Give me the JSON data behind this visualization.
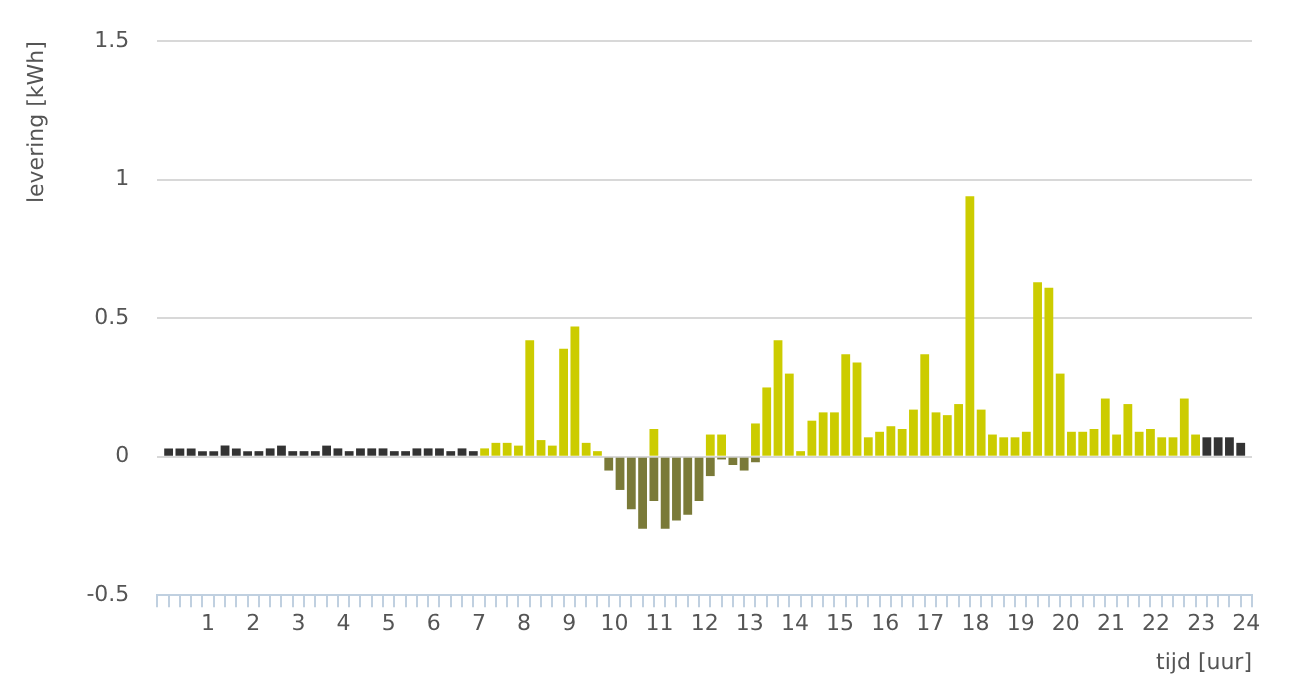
{
  "chart_data": {
    "type": "bar",
    "xlabel": "tijd [uur]",
    "ylabel": "levering [kWh]",
    "x": [
      0.125,
      0.375,
      0.625,
      0.875,
      1.125,
      1.375,
      1.625,
      1.875,
      2.125,
      2.375,
      2.625,
      2.875,
      3.125,
      3.375,
      3.625,
      3.875,
      4.125,
      4.375,
      4.625,
      4.875,
      5.125,
      5.375,
      5.625,
      5.875,
      6.125,
      6.375,
      6.625,
      6.875,
      7.125,
      7.375,
      7.625,
      7.875,
      8.125,
      8.375,
      8.625,
      8.875,
      9.125,
      9.375,
      9.625,
      9.875,
      10.125,
      10.375,
      10.625,
      10.875,
      11.125,
      11.375,
      11.625,
      11.875,
      12.125,
      12.375,
      12.625,
      12.875,
      13.125,
      13.375,
      13.625,
      13.875,
      14.125,
      14.375,
      14.625,
      14.875,
      15.125,
      15.375,
      15.625,
      15.875,
      16.125,
      16.375,
      16.625,
      16.875,
      17.125,
      17.375,
      17.625,
      17.875,
      18.125,
      18.375,
      18.625,
      18.875,
      19.125,
      19.375,
      19.625,
      19.875,
      20.125,
      20.375,
      20.625,
      20.875,
      21.125,
      21.375,
      21.625,
      21.875,
      22.125,
      22.375,
      22.625,
      22.875,
      23.125,
      23.375,
      23.625,
      23.875
    ],
    "series": [
      {
        "color": "#333333",
        "values": [
          0.03,
          0.03,
          0.03,
          0.02,
          0.02,
          0.04,
          0.03,
          0.02,
          0.02,
          0.03,
          0.04,
          0.02,
          0.02,
          0.02,
          0.04,
          0.03,
          0.02,
          0.03,
          0.03,
          0.03,
          0.02,
          0.02,
          0.03,
          0.03,
          0.03,
          0.02,
          0.03,
          0.02,
          null,
          null,
          null,
          null,
          null,
          null,
          null,
          null,
          null,
          null,
          null,
          null,
          null,
          null,
          null,
          null,
          null,
          null,
          null,
          null,
          null,
          null,
          null,
          null,
          null,
          null,
          null,
          null,
          null,
          null,
          null,
          null,
          null,
          null,
          null,
          null,
          null,
          null,
          null,
          null,
          null,
          null,
          null,
          null,
          null,
          null,
          null,
          null,
          null,
          null,
          null,
          null,
          null,
          null,
          null,
          null,
          null,
          null,
          null,
          null,
          null,
          null,
          null,
          null,
          0.07,
          0.07,
          0.07,
          0.05
        ]
      },
      {
        "color": "#cccc00",
        "values": [
          null,
          null,
          null,
          null,
          null,
          null,
          null,
          null,
          null,
          null,
          null,
          null,
          null,
          null,
          null,
          null,
          null,
          null,
          null,
          null,
          null,
          null,
          null,
          null,
          null,
          null,
          null,
          null,
          0.03,
          0.05,
          0.05,
          0.04,
          0.42,
          0.06,
          0.04,
          0.39,
          0.47,
          0.05,
          0.02,
          null,
          null,
          null,
          null,
          0.1,
          null,
          null,
          null,
          null,
          0.08,
          0.08,
          null,
          null,
          0.12,
          0.25,
          0.42,
          0.3,
          0.02,
          0.13,
          0.16,
          0.16,
          0.37,
          0.34,
          0.07,
          0.09,
          0.11,
          0.1,
          0.17,
          0.37,
          0.16,
          0.15,
          0.19,
          0.94,
          0.17,
          0.08,
          0.07,
          0.07,
          0.09,
          0.63,
          0.61,
          0.3,
          0.09,
          0.09,
          0.1,
          0.21,
          0.08,
          0.19,
          0.09,
          0.1,
          0.07,
          0.07,
          0.21,
          0.08,
          null,
          null,
          null,
          null
        ]
      },
      {
        "color": "#7a7a38",
        "values": [
          null,
          null,
          null,
          null,
          null,
          null,
          null,
          null,
          null,
          null,
          null,
          null,
          null,
          null,
          null,
          null,
          null,
          null,
          null,
          null,
          null,
          null,
          null,
          null,
          null,
          null,
          null,
          null,
          null,
          null,
          null,
          null,
          null,
          null,
          null,
          null,
          null,
          null,
          null,
          -0.05,
          -0.12,
          -0.19,
          -0.26,
          -0.16,
          -0.26,
          -0.23,
          -0.21,
          -0.16,
          -0.07,
          -0.01,
          -0.03,
          -0.05,
          -0.02,
          null,
          null,
          null,
          null,
          null,
          null,
          null,
          null,
          null,
          null,
          null,
          null,
          null,
          null,
          null,
          null,
          null,
          null,
          null,
          null,
          null,
          null,
          null,
          null,
          null,
          null,
          null,
          null,
          null,
          null,
          null,
          null,
          null,
          null,
          null,
          null,
          null,
          null,
          null,
          null,
          null,
          null,
          null
        ]
      }
    ],
    "xlim": [
      0,
      24
    ],
    "xticks": [
      {
        "value": 0,
        "label": null
      },
      {
        "value": 0.25,
        "label": null
      },
      {
        "value": 0.5,
        "label": null
      },
      {
        "value": 0.75,
        "label": null
      },
      1,
      {
        "value": 1.25,
        "label": null
      },
      {
        "value": 1.5,
        "label": null
      },
      {
        "value": 1.75,
        "label": null
      },
      2,
      {
        "value": 2.25,
        "label": null
      },
      {
        "value": 2.5,
        "label": null
      },
      {
        "value": 2.75,
        "label": null
      },
      3,
      {
        "value": 3.25,
        "label": null
      },
      {
        "value": 3.5,
        "label": null
      },
      {
        "value": 3.75,
        "label": null
      },
      4,
      {
        "value": 4.25,
        "label": null
      },
      {
        "value": 4.5,
        "label": null
      },
      {
        "value": 4.75,
        "label": null
      },
      5,
      {
        "value": 5.25,
        "label": null
      },
      {
        "value": 5.5,
        "label": null
      },
      {
        "value": 5.75,
        "label": null
      },
      6,
      {
        "value": 6.25,
        "label": null
      },
      {
        "value": 6.5,
        "label": null
      },
      {
        "value": 6.75,
        "label": null
      },
      7,
      {
        "value": 7.25,
        "label": null
      },
      {
        "value": 7.5,
        "label": null
      },
      {
        "value": 7.75,
        "label": null
      },
      8,
      {
        "value": 8.25,
        "label": null
      },
      {
        "value": 8.5,
        "label": null
      },
      {
        "value": 8.75,
        "label": null
      },
      9,
      {
        "value": 9.25,
        "label": null
      },
      {
        "value": 9.5,
        "label": null
      },
      {
        "value": 9.75,
        "label": null
      },
      10,
      {
        "value": 10.25,
        "label": null
      },
      {
        "value": 10.5,
        "label": null
      },
      {
        "value": 10.75,
        "label": null
      },
      11,
      {
        "value": 11.25,
        "label": null
      },
      {
        "value": 11.5,
        "label": null
      },
      {
        "value": 11.75,
        "label": null
      },
      12,
      {
        "value": 12.25,
        "label": null
      },
      {
        "value": 12.5,
        "label": null
      },
      {
        "value": 12.75,
        "label": null
      },
      13,
      {
        "value": 13.25,
        "label": null
      },
      {
        "value": 13.5,
        "label": null
      },
      {
        "value": 13.75,
        "label": null
      },
      14,
      {
        "value": 14.25,
        "label": null
      },
      {
        "value": 14.5,
        "label": null
      },
      {
        "value": 14.75,
        "label": null
      },
      15,
      {
        "value": 15.25,
        "label": null
      },
      {
        "value": 15.5,
        "label": null
      },
      {
        "value": 15.75,
        "label": null
      },
      16,
      {
        "value": 16.25,
        "label": null
      },
      {
        "value": 16.5,
        "label": null
      },
      {
        "value": 16.75,
        "label": null
      },
      17,
      {
        "value": 17.25,
        "label": null
      },
      {
        "value": 17.5,
        "label": null
      },
      {
        "value": 17.75,
        "label": null
      },
      18,
      {
        "value": 18.25,
        "label": null
      },
      {
        "value": 18.5,
        "label": null
      },
      {
        "value": 18.75,
        "label": null
      },
      19,
      {
        "value": 19.25,
        "label": null
      },
      {
        "value": 19.5,
        "label": null
      },
      {
        "value": 19.75,
        "label": null
      },
      20,
      {
        "value": 20.25,
        "label": null
      },
      {
        "value": 20.5,
        "label": null
      },
      {
        "value": 20.75,
        "label": null
      },
      21,
      {
        "value": 21.25,
        "label": null
      },
      {
        "value": 21.5,
        "label": null
      },
      {
        "value": 21.75,
        "label": null
      },
      22,
      {
        "value": 22.25,
        "label": null
      },
      {
        "value": 22.5,
        "label": null
      },
      {
        "value": 22.75,
        "label": null
      },
      23,
      {
        "value": 23.25,
        "label": null
      },
      {
        "value": 23.5,
        "label": null
      },
      {
        "value": 23.75,
        "label": null
      },
      24
    ],
    "ylim": [
      -0.5,
      1.5
    ],
    "yticks": [
      -0.5,
      0,
      0.5,
      1,
      1.5
    ],
    "grid": "y",
    "legend": false
  }
}
